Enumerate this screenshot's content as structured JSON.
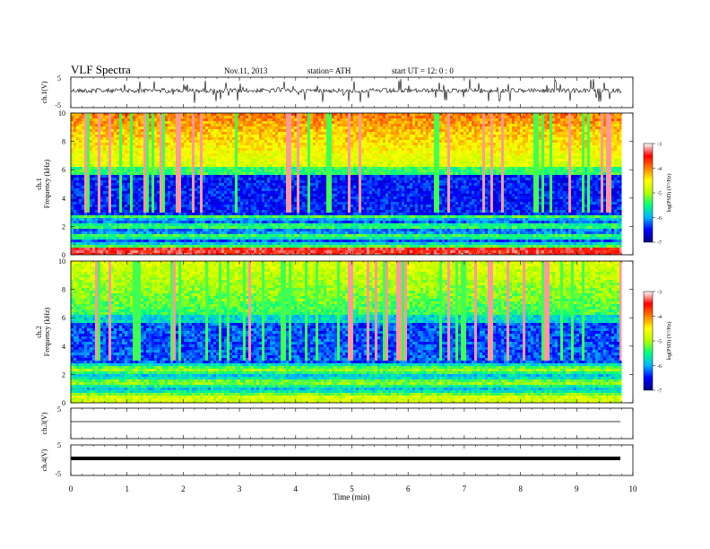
{
  "header": {
    "title": "VLF  Spectra",
    "date": "Nov.11, 2013",
    "station": "station= ATH",
    "start": "start  UT  =    12: 0   : 0"
  },
  "chart_data": [
    {
      "type": "line",
      "name": "ch1-waveform",
      "ylabel": "ch.1(V)",
      "ylim": [
        -5,
        5
      ],
      "yticks": [
        "5",
        "-5"
      ]
    },
    {
      "type": "heatmap",
      "name": "ch1-spectrogram",
      "ylabel": "ch.1\nFrequency  (kHz)",
      "ylim": [
        0,
        10
      ],
      "yticks": [
        "0",
        "2",
        "4",
        "6",
        "8",
        "10"
      ],
      "colorbar": {
        "label": "log(PSD) (V²/Hz)",
        "range": [
          -7,
          -3
        ],
        "ticks": [
          "-3",
          "-4",
          "-5",
          "-6",
          "-7"
        ],
        "colors": [
          "#000080",
          "#0000ff",
          "#00b4ff",
          "#00ff80",
          "#b4ff00",
          "#ffff00",
          "#ff8000",
          "#ff0000",
          "#ffffff"
        ]
      }
    },
    {
      "type": "heatmap",
      "name": "ch2-spectrogram",
      "ylabel": "ch.2\nFrequency  (kHz)",
      "ylim": [
        0,
        10
      ],
      "yticks": [
        "0",
        "2",
        "4",
        "6",
        "8",
        "10"
      ],
      "colorbar": {
        "label": "log(PSD) (V²/Hz)",
        "range": [
          -7,
          -3
        ],
        "ticks": [
          "-3",
          "-4",
          "-5",
          "-6",
          "-7"
        ],
        "colors": [
          "#000080",
          "#0000ff",
          "#00b4ff",
          "#00ff80",
          "#b4ff00",
          "#ffff00",
          "#ff8000",
          "#ff0000",
          "#ffffff"
        ]
      }
    },
    {
      "type": "line",
      "name": "ch3-waveform",
      "ylabel": "ch.3(V)",
      "ylim": [
        -5,
        5
      ],
      "yticks": [
        "5"
      ]
    },
    {
      "type": "line",
      "name": "ch4-waveform",
      "ylabel": "ch.4(V)",
      "ylim": [
        -5,
        5
      ],
      "yticks": [
        "5",
        "-5"
      ]
    }
  ],
  "xaxis": {
    "label": "Time  (min)",
    "xlim": [
      0,
      10
    ],
    "ticks": [
      "0",
      "1",
      "2",
      "3",
      "4",
      "5",
      "6",
      "7",
      "8",
      "9",
      "10"
    ],
    "data_end": 9.8
  }
}
